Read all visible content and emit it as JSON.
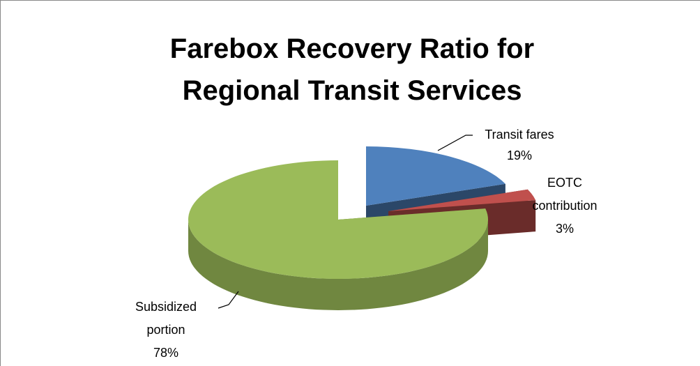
{
  "chart_data": {
    "type": "pie",
    "title": "Farebox Recovery Ratio for Regional Transit Services",
    "categories": [
      "Transit fares",
      "EOTC contribution",
      "Subsidized portion"
    ],
    "values": [
      19,
      3,
      78
    ],
    "value_labels": [
      "19%",
      "3%",
      "78%"
    ],
    "colors": [
      "#4f81bd",
      "#c0504d",
      "#9bbb59"
    ]
  }
}
